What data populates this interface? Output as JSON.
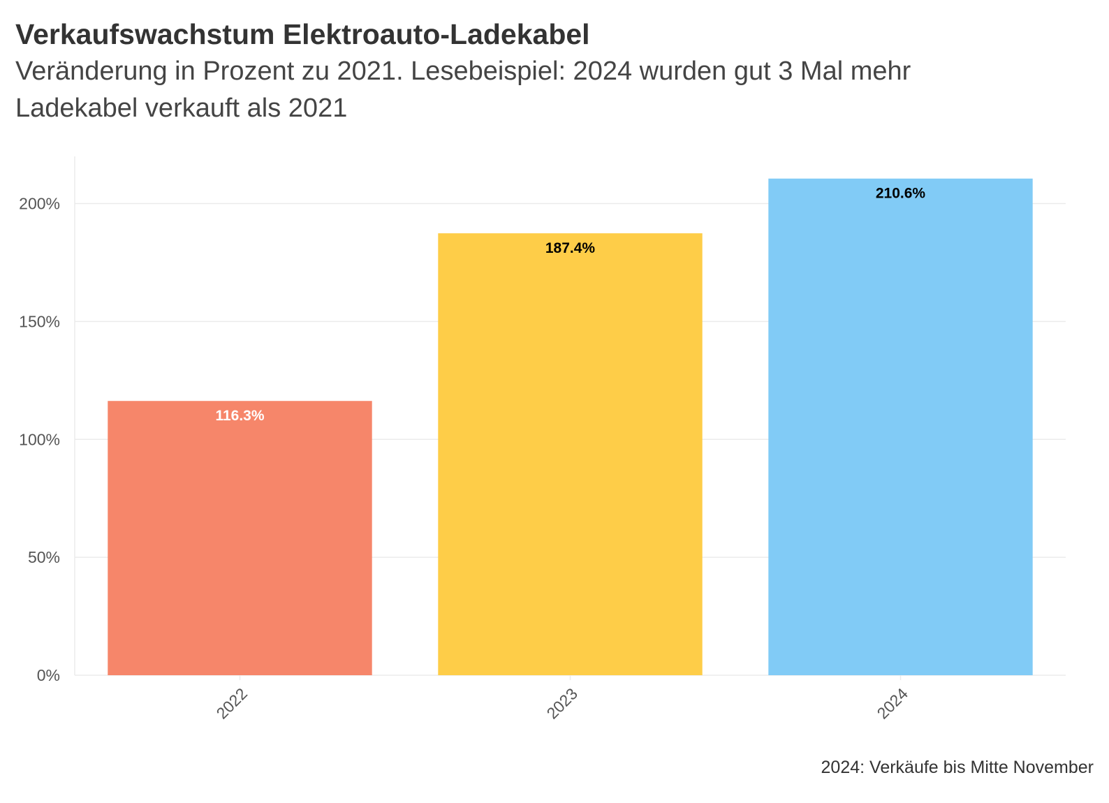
{
  "chart_data": {
    "type": "bar",
    "title": "Verkaufswachstum Elektroauto-Ladekabel",
    "subtitle": "Veränderung in Prozent zu 2021. Lesebeispiel: 2024 wurden gut 3 Mal mehr Ladekabel verkauft als 2021",
    "caption": "2024: Verkäufe bis Mitte November",
    "categories": [
      "2022",
      "2023",
      "2024"
    ],
    "values": [
      116.3,
      187.4,
      210.6
    ],
    "value_labels": [
      "116.3%",
      "187.4%",
      "210.6%"
    ],
    "bar_colors": [
      "#F6866A",
      "#FECD48",
      "#81CBF6"
    ],
    "label_colors": [
      "#FFFFFF",
      "#000000",
      "#000000"
    ],
    "y_ticks": [
      0,
      50,
      100,
      150,
      200
    ],
    "y_tick_labels": [
      "0%",
      "50%",
      "100%",
      "150%",
      "200%"
    ],
    "ylim": [
      0,
      220
    ],
    "xlabel": "",
    "ylabel": "",
    "grid": true,
    "legend": "none"
  }
}
